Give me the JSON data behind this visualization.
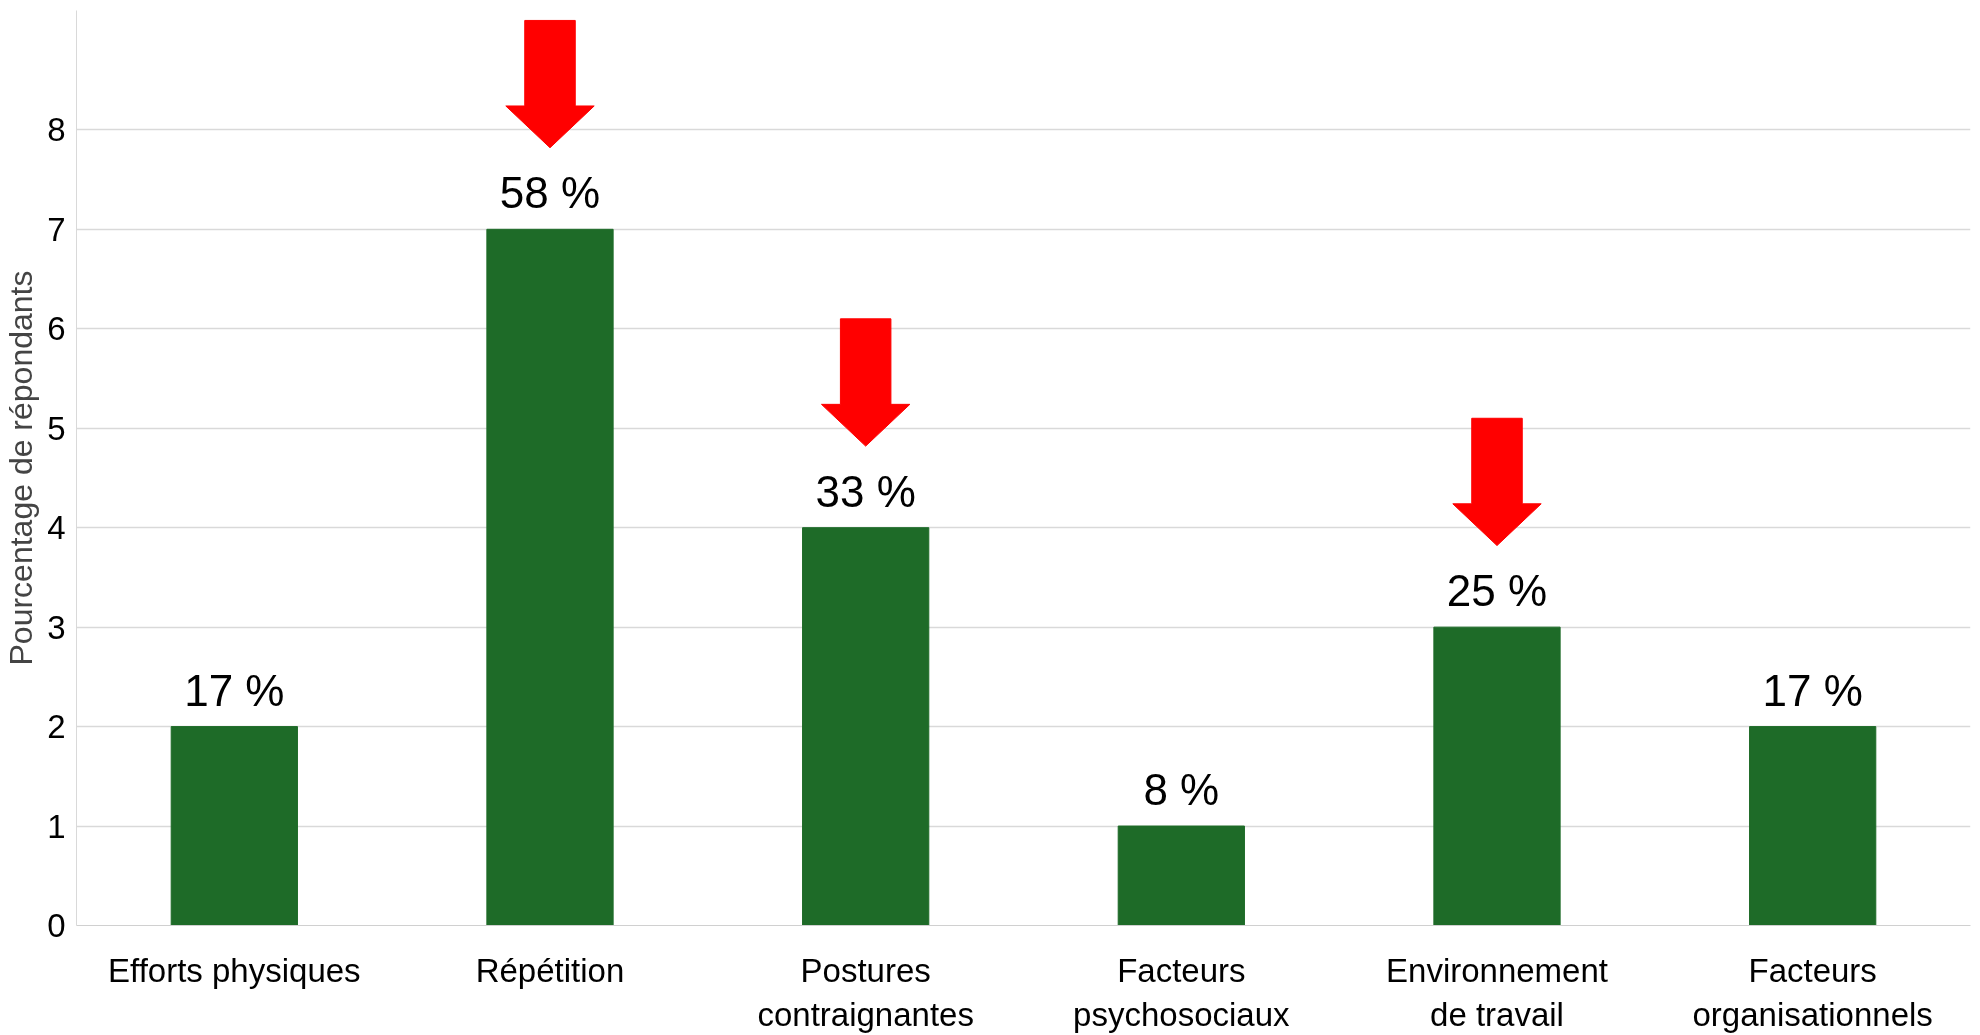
{
  "chart_data": {
    "type": "bar",
    "ylabel": "Pourcentage de répondants",
    "categories": [
      "Efforts physiques",
      "Répétition",
      "Postures\ncontraignantes",
      "Facteurs\npsychosociaux",
      "Environnement\nde travail",
      "Facteurs\norganisationnels"
    ],
    "values": [
      2,
      7,
      4,
      1,
      3,
      2
    ],
    "color": "#1e6b28",
    "annotations": [
      {
        "text": "17 %",
        "x": "Efforts physiques",
        "y": 2
      },
      {
        "text": "58 %",
        "x": "Répétition",
        "y": 7
      },
      {
        "text": "33 %",
        "x": "Postures\ncontraignantes",
        "y": 4
      },
      {
        "text": "8 %",
        "x": "Facteurs\npsychosociaux",
        "y": 1
      },
      {
        "text": "25 %",
        "x": "Environnement\nde travail",
        "y": 3
      },
      {
        "text": "17 %",
        "x": "Facteurs\norganisationnels",
        "y": 2
      }
    ],
    "ylim": [
      0,
      9.2
    ],
    "yticks": [
      0,
      1,
      2,
      3,
      4,
      5,
      6,
      7,
      8
    ],
    "grid": "y"
  }
}
